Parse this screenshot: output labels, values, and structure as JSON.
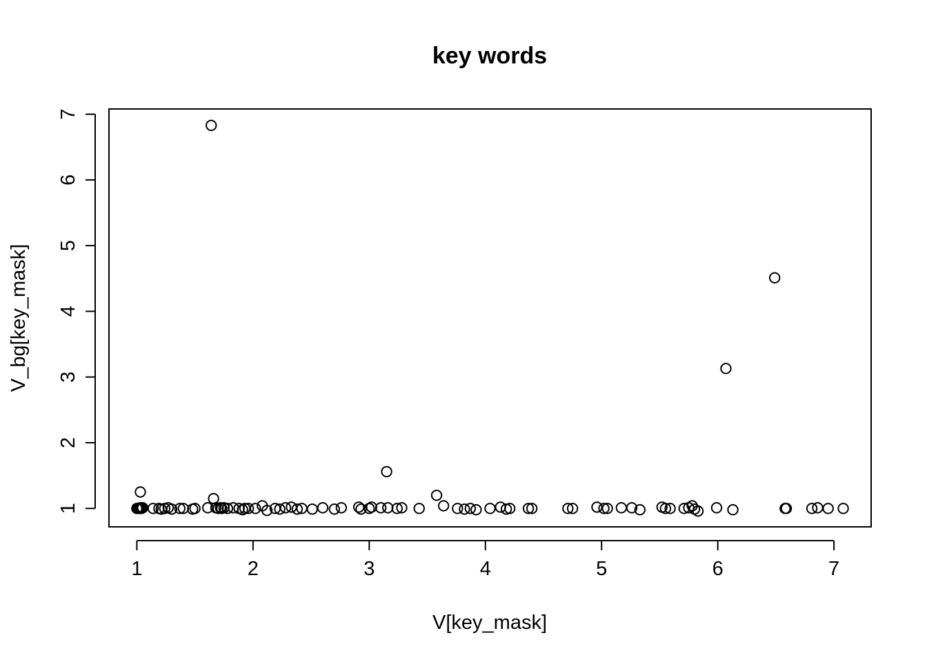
{
  "chart_data": {
    "type": "scatter",
    "title": "key words",
    "xlabel": "V[key_mask]",
    "ylabel": "V_bg[key_mask]",
    "xlim": [
      0.76,
      7.32
    ],
    "ylim": [
      0.72,
      7.08
    ],
    "xticks": [
      1,
      2,
      3,
      4,
      5,
      6,
      7
    ],
    "yticks": [
      1,
      2,
      3,
      4,
      5,
      6,
      7
    ],
    "grid": false,
    "marker": "open-circle",
    "points": [
      [
        1.0,
        1.0
      ],
      [
        1.01,
        1.0
      ],
      [
        1.02,
        1.0
      ],
      [
        1.03,
        1.01
      ],
      [
        1.04,
        1.0
      ],
      [
        1.05,
        1.01
      ],
      [
        1.03,
        1.25
      ],
      [
        1.14,
        1.0
      ],
      [
        1.19,
        1.0
      ],
      [
        1.21,
        0.99
      ],
      [
        1.24,
        1.0
      ],
      [
        1.27,
        1.01
      ],
      [
        1.3,
        0.99
      ],
      [
        1.37,
        1.0
      ],
      [
        1.4,
        1.0
      ],
      [
        1.48,
        0.99
      ],
      [
        1.5,
        1.0
      ],
      [
        1.61,
        1.01
      ],
      [
        1.64,
        6.83
      ],
      [
        1.66,
        1.15
      ],
      [
        1.68,
        1.01
      ],
      [
        1.7,
        1.0
      ],
      [
        1.72,
        1.01
      ],
      [
        1.73,
        1.0
      ],
      [
        1.75,
        1.01
      ],
      [
        1.78,
        1.0
      ],
      [
        1.83,
        1.01
      ],
      [
        1.88,
        1.0
      ],
      [
        1.91,
        0.98
      ],
      [
        1.93,
        1.0
      ],
      [
        1.96,
        1.0
      ],
      [
        2.02,
        1.0
      ],
      [
        2.08,
        1.04
      ],
      [
        2.12,
        0.97
      ],
      [
        2.19,
        1.0
      ],
      [
        2.23,
        0.99
      ],
      [
        2.28,
        1.01
      ],
      [
        2.33,
        1.02
      ],
      [
        2.38,
        0.99
      ],
      [
        2.42,
        1.0
      ],
      [
        2.51,
        0.99
      ],
      [
        2.6,
        1.01
      ],
      [
        2.7,
        0.99
      ],
      [
        2.76,
        1.01
      ],
      [
        2.91,
        1.02
      ],
      [
        2.93,
        0.99
      ],
      [
        3.0,
        1.0
      ],
      [
        3.02,
        1.02
      ],
      [
        3.1,
        1.01
      ],
      [
        3.15,
        1.56
      ],
      [
        3.16,
        1.01
      ],
      [
        3.24,
        1.0
      ],
      [
        3.28,
        1.01
      ],
      [
        3.43,
        1.0
      ],
      [
        3.58,
        1.2
      ],
      [
        3.64,
        1.04
      ],
      [
        3.76,
        1.0
      ],
      [
        3.82,
        0.99
      ],
      [
        3.87,
        1.0
      ],
      [
        3.92,
        0.98
      ],
      [
        4.04,
        1.0
      ],
      [
        4.13,
        1.02
      ],
      [
        4.18,
        0.99
      ],
      [
        4.21,
        1.0
      ],
      [
        4.37,
        1.0
      ],
      [
        4.4,
        1.0
      ],
      [
        4.71,
        1.0
      ],
      [
        4.75,
        1.0
      ],
      [
        4.96,
        1.02
      ],
      [
        5.02,
        1.0
      ],
      [
        5.05,
        1.0
      ],
      [
        5.17,
        1.01
      ],
      [
        5.26,
        1.01
      ],
      [
        5.33,
        0.98
      ],
      [
        5.52,
        1.02
      ],
      [
        5.55,
        1.0
      ],
      [
        5.59,
        1.0
      ],
      [
        5.71,
        1.0
      ],
      [
        5.75,
        1.01
      ],
      [
        5.78,
        1.04
      ],
      [
        5.8,
        0.99
      ],
      [
        5.83,
        0.96
      ],
      [
        5.99,
        1.01
      ],
      [
        6.07,
        3.13
      ],
      [
        6.13,
        0.98
      ],
      [
        6.49,
        4.51
      ],
      [
        6.58,
        1.0
      ],
      [
        6.59,
        1.0
      ],
      [
        6.81,
        1.0
      ],
      [
        6.86,
        1.01
      ],
      [
        6.95,
        1.0
      ],
      [
        7.08,
        1.0
      ]
    ]
  }
}
